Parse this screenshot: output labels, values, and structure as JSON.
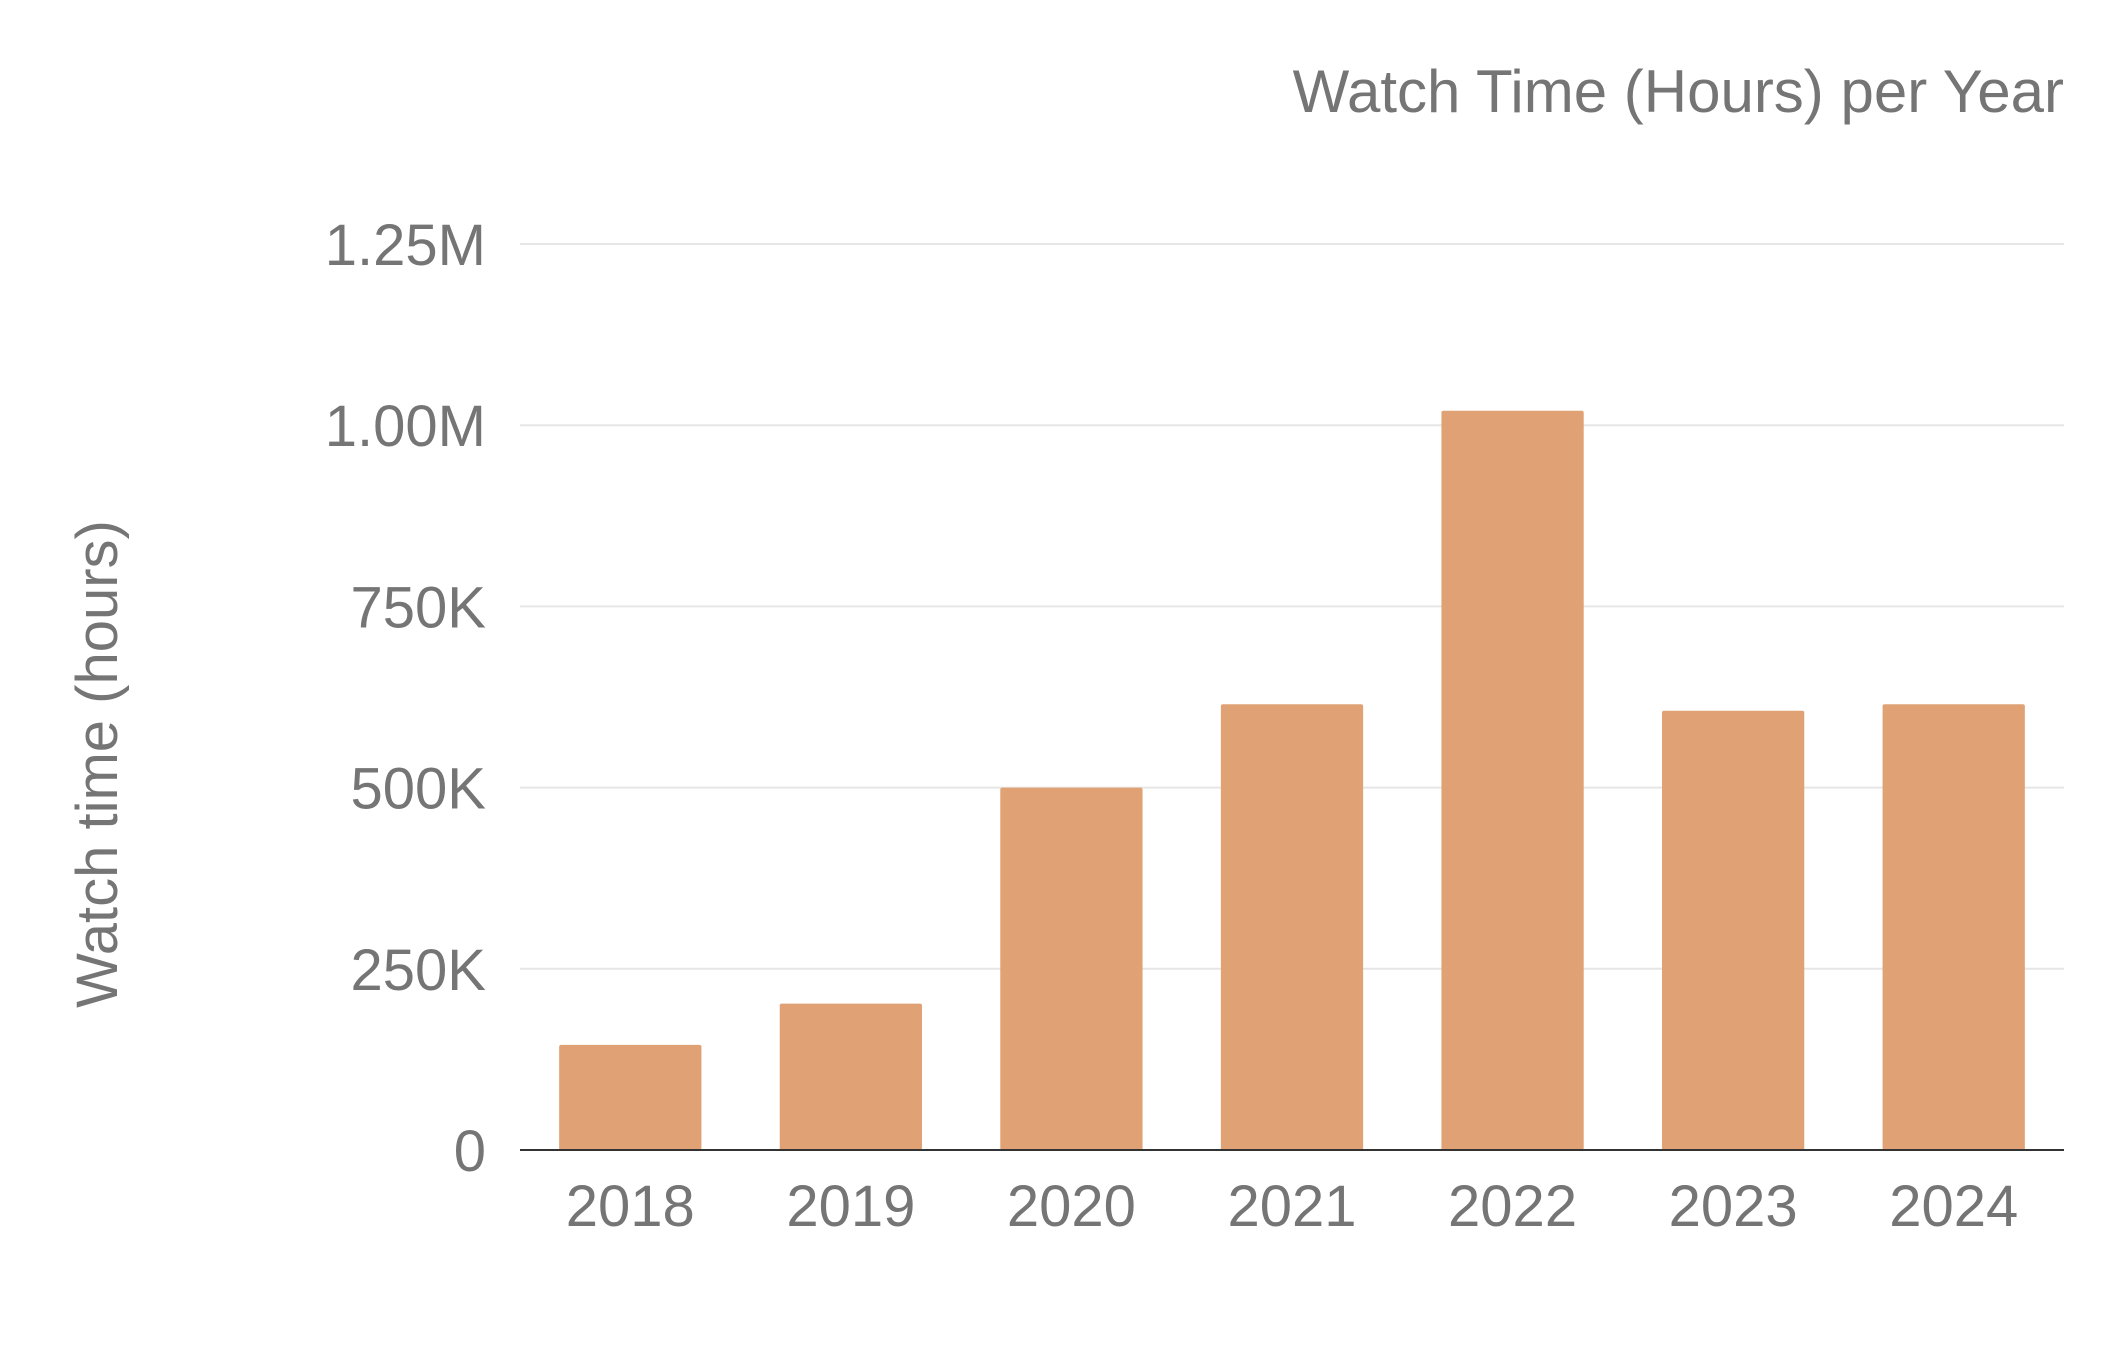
{
  "chart_data": {
    "type": "bar",
    "title": "Watch Time (Hours) per Year",
    "xlabel": "",
    "ylabel": "Watch time (hours)",
    "categories": [
      "2018",
      "2019",
      "2020",
      "2021",
      "2022",
      "2023",
      "2024"
    ],
    "series": [
      {
        "values": [
          145000,
          202000,
          500000,
          615000,
          1020000,
          606000,
          615000
        ],
        "color": "#e0a274"
      }
    ],
    "ylim": [
      0,
      1250000
    ],
    "yticks": [
      {
        "value": 0,
        "label": "0"
      },
      {
        "value": 250000,
        "label": "250K"
      },
      {
        "value": 500000,
        "label": "500K"
      },
      {
        "value": 750000,
        "label": "750K"
      },
      {
        "value": 1000000,
        "label": "1.00M"
      },
      {
        "value": 1250000,
        "label": "1.25M"
      }
    ],
    "grid": true,
    "legend": "none"
  },
  "colors": {
    "bar": "#e0a274",
    "text": "#757575",
    "grid": "#e6e6e6",
    "axis": "#333333"
  }
}
